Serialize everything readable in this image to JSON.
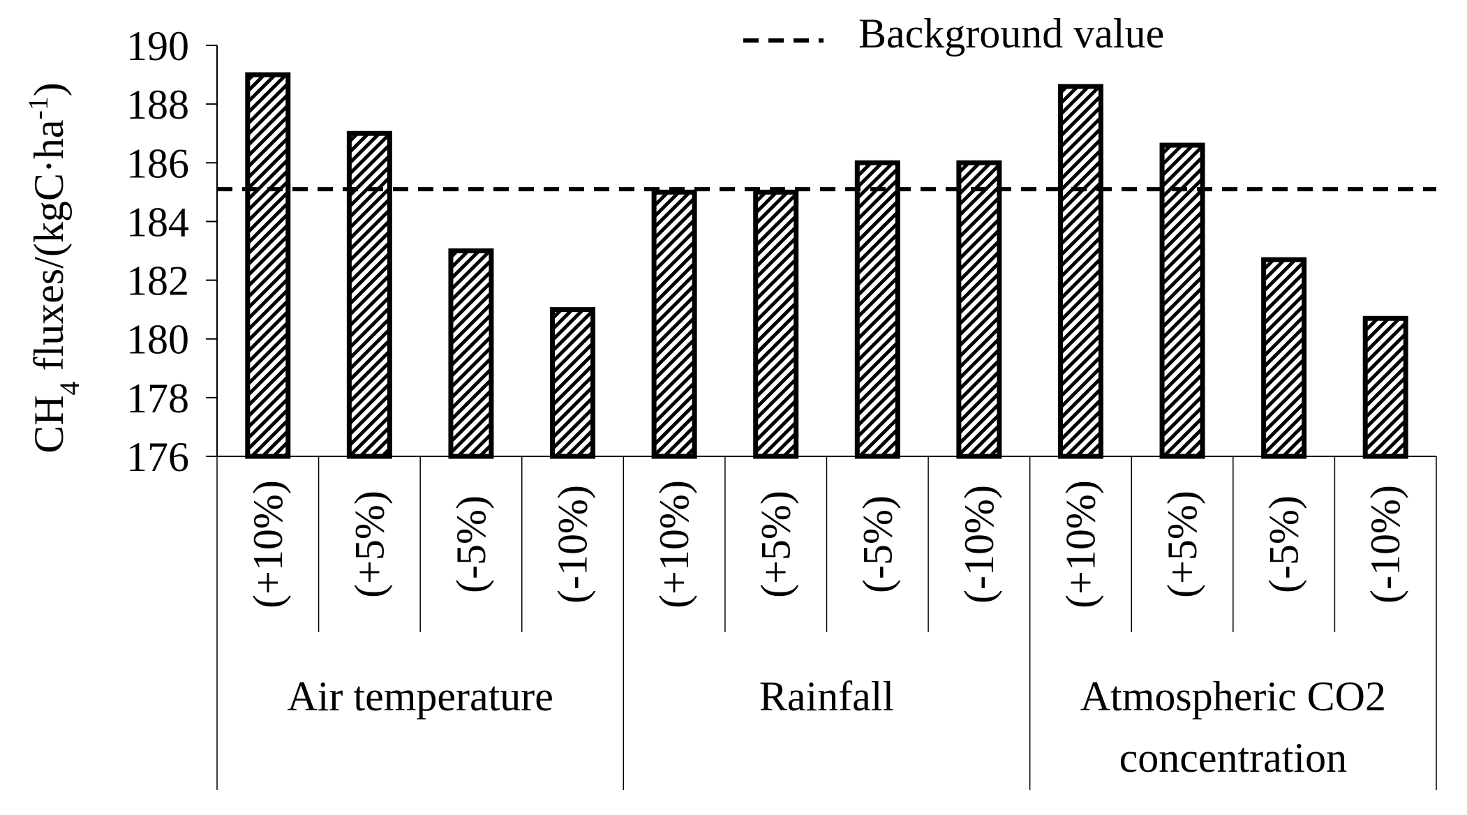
{
  "chart_data": {
    "type": "bar",
    "ylabel_parts": [
      "CH",
      "4",
      " fluxes/(kgC·ha",
      "-1",
      ")"
    ],
    "ylim": [
      176,
      190
    ],
    "yticks": [
      176,
      178,
      180,
      182,
      184,
      186,
      188,
      190
    ],
    "categories": [
      "(+10%)",
      "(+5%)",
      "(-5%)",
      "(-10%)",
      "(+10%)",
      "(+5%)",
      "(-5%)",
      "(-10%)",
      "(+10%)",
      "(+5%)",
      "(-5%)",
      "(-10%)"
    ],
    "groups": [
      {
        "lines": [
          "Air temperature"
        ],
        "span": 4
      },
      {
        "lines": [
          "Rainfall"
        ],
        "span": 4
      },
      {
        "lines": [
          "Atmospheric CO2",
          "concentration"
        ],
        "span": 4
      }
    ],
    "values": [
      189.0,
      187.0,
      183.0,
      181.0,
      185.0,
      185.0,
      186.0,
      186.0,
      188.6,
      186.6,
      182.7,
      180.7
    ],
    "background_value": 185.1,
    "legend": {
      "label": "Background value",
      "position": "top-center"
    },
    "bar_style": "diagonal-hatch",
    "line_style": "dashed"
  }
}
